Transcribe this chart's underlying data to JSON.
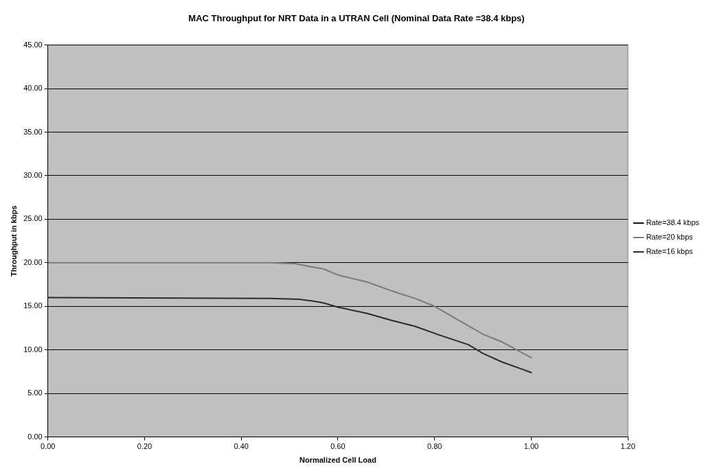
{
  "chart_data": {
    "type": "line",
    "title": "MAC Throughput for NRT Data in a UTRAN Cell (Nominal Data Rate =38.4 kbps)",
    "xlabel": "Normalized Cell Load",
    "ylabel": "Throughput in kbps",
    "series": [
      {
        "name": "Rate=38.4 kbps",
        "color": "#111111"
      },
      {
        "name": "Rate=20 kbps",
        "color": "#7a7a7a",
        "x": [
          0,
          0.46,
          0.51,
          0.54,
          0.57,
          0.6,
          0.66,
          0.71,
          0.76,
          0.8,
          0.85,
          0.9,
          0.94,
          0.97,
          1.0
        ],
        "values": [
          20.0,
          20.0,
          19.9,
          19.6,
          19.3,
          18.6,
          17.8,
          16.8,
          15.9,
          15.0,
          13.4,
          11.8,
          10.9,
          10.0,
          9.1
        ]
      },
      {
        "name": "Rate=16 kbps",
        "color": "#2a2a2a",
        "x": [
          0,
          0.46,
          0.52,
          0.55,
          0.57,
          0.6,
          0.66,
          0.71,
          0.76,
          0.81,
          0.87,
          0.9,
          0.94,
          1.0
        ],
        "values": [
          16.0,
          15.9,
          15.8,
          15.6,
          15.4,
          14.9,
          14.2,
          13.4,
          12.7,
          11.7,
          10.6,
          9.6,
          8.6,
          7.4
        ]
      }
    ],
    "xlim": [
      0,
      1.2
    ],
    "xticks": [
      {
        "value": 0,
        "label": "0.00"
      },
      {
        "value": 0.2,
        "label": "0.20"
      },
      {
        "value": 0.4,
        "label": "0.40"
      },
      {
        "value": 0.6,
        "label": "0.60"
      },
      {
        "value": 0.8,
        "label": "0.80"
      },
      {
        "value": 1.0,
        "label": "1.00"
      },
      {
        "value": 1.2,
        "label": "1.20"
      }
    ],
    "ylim": [
      0,
      45
    ],
    "yticks": [
      {
        "value": 0,
        "label": "0.00"
      },
      {
        "value": 5,
        "label": "5.00"
      },
      {
        "value": 10,
        "label": "10.00"
      },
      {
        "value": 15,
        "label": "15.00"
      },
      {
        "value": 20,
        "label": "20.00"
      },
      {
        "value": 25,
        "label": "25.00"
      },
      {
        "value": 30,
        "label": "30.00"
      },
      {
        "value": 35,
        "label": "35.00"
      },
      {
        "value": 40,
        "label": "40.00"
      },
      {
        "value": 45,
        "label": "45.00"
      }
    ],
    "grid": "y",
    "legend": "right",
    "marker": "none",
    "line_style": "solid"
  }
}
